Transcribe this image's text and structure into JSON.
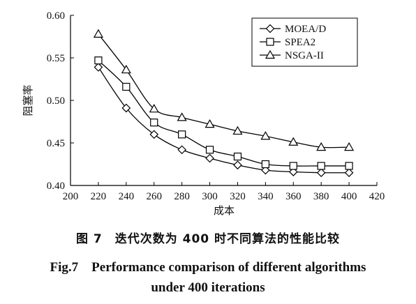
{
  "chart_data": {
    "type": "line",
    "xlabel": "成本",
    "ylabel": "阻塞率",
    "xlim": [
      200,
      420
    ],
    "ylim": [
      0.4,
      0.6
    ],
    "xticks": [
      "200",
      "220",
      "240",
      "260",
      "280",
      "300",
      "320",
      "340",
      "360",
      "380",
      "400",
      "420"
    ],
    "yticks": [
      "0.40",
      "0.45",
      "0.50",
      "0.55",
      "0.60"
    ],
    "grid": false,
    "legend_position": "top-right",
    "x": [
      220,
      240,
      260,
      280,
      300,
      320,
      340,
      360,
      380,
      400
    ],
    "series": [
      {
        "name": "MOEA/D",
        "marker": "diamond",
        "values": [
          0.539,
          0.491,
          0.46,
          0.442,
          0.432,
          0.424,
          0.418,
          0.416,
          0.415,
          0.415
        ]
      },
      {
        "name": "SPEA2",
        "marker": "square",
        "values": [
          0.547,
          0.516,
          0.474,
          0.46,
          0.442,
          0.434,
          0.425,
          0.423,
          0.423,
          0.423
        ]
      },
      {
        "name": "NSGA-II",
        "marker": "triangle",
        "values": [
          0.578,
          0.536,
          0.49,
          0.48,
          0.472,
          0.464,
          0.458,
          0.451,
          0.445,
          0.445
        ]
      }
    ]
  },
  "caption": {
    "cn": "图 7　迭代次数为 400 时不同算法的性能比较",
    "en_line1": "Fig.7　Performance comparison of different algorithms",
    "en_line2": "under 400 iterations"
  }
}
